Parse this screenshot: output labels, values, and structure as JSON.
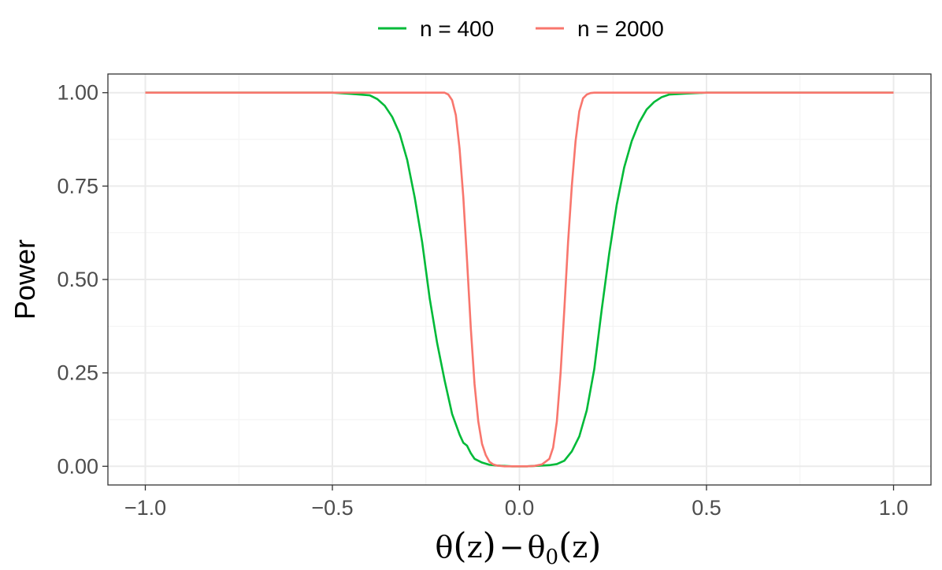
{
  "chart_data": {
    "type": "line",
    "xlabel_parts": {
      "theta": "θ",
      "open": "(",
      "z": "z",
      "close": ")",
      "minus": "−",
      "sub": "0"
    },
    "ylabel": "Power",
    "xlim": [
      -1.1,
      1.1
    ],
    "ylim": [
      -0.05,
      1.05
    ],
    "x_ticks": [
      -1.0,
      -0.5,
      0.0,
      0.5,
      1.0
    ],
    "x_tick_labels": [
      "−1.0",
      "−0.5",
      "0.0",
      "0.5",
      "1.0"
    ],
    "y_ticks": [
      0.0,
      0.25,
      0.5,
      0.75,
      1.0
    ],
    "y_tick_labels": [
      "0.00",
      "0.25",
      "0.50",
      "0.75",
      "1.00"
    ],
    "grid": true,
    "legend_position": "top",
    "series": [
      {
        "name": "n = 400",
        "color": "#00ba38",
        "x": [
          -1.0,
          -0.5,
          -0.45,
          -0.4,
          -0.38,
          -0.36,
          -0.34,
          -0.32,
          -0.3,
          -0.28,
          -0.26,
          -0.24,
          -0.22,
          -0.2,
          -0.18,
          -0.16,
          -0.15,
          -0.14,
          -0.13,
          -0.12,
          -0.1,
          -0.08,
          -0.06,
          -0.04,
          -0.02,
          0.0,
          0.02,
          0.04,
          0.06,
          0.08,
          0.1,
          0.12,
          0.14,
          0.16,
          0.18,
          0.2,
          0.22,
          0.24,
          0.26,
          0.28,
          0.3,
          0.32,
          0.34,
          0.36,
          0.38,
          0.4,
          0.45,
          0.5,
          1.0
        ],
        "values": [
          1.0,
          1.0,
          0.997,
          0.993,
          0.983,
          0.965,
          0.935,
          0.89,
          0.82,
          0.72,
          0.6,
          0.45,
          0.33,
          0.23,
          0.14,
          0.085,
          0.063,
          0.055,
          0.035,
          0.02,
          0.01,
          0.004,
          0.002,
          0.001,
          0.0,
          0.0,
          0.0,
          0.001,
          0.002,
          0.003,
          0.006,
          0.015,
          0.04,
          0.08,
          0.15,
          0.26,
          0.42,
          0.57,
          0.7,
          0.8,
          0.87,
          0.92,
          0.955,
          0.975,
          0.988,
          0.995,
          0.998,
          1.0,
          1.0
        ]
      },
      {
        "name": "n = 2000",
        "color": "#f8766d",
        "x": [
          -1.0,
          -0.2,
          -0.19,
          -0.18,
          -0.17,
          -0.16,
          -0.15,
          -0.14,
          -0.13,
          -0.12,
          -0.11,
          -0.1,
          -0.09,
          -0.08,
          -0.07,
          -0.06,
          -0.05,
          -0.04,
          -0.02,
          0.0,
          0.02,
          0.04,
          0.06,
          0.08,
          0.09,
          0.1,
          0.11,
          0.12,
          0.13,
          0.14,
          0.15,
          0.16,
          0.17,
          0.18,
          0.19,
          0.2,
          1.0
        ],
        "values": [
          1.0,
          1.0,
          0.995,
          0.98,
          0.94,
          0.85,
          0.72,
          0.55,
          0.37,
          0.22,
          0.12,
          0.06,
          0.03,
          0.012,
          0.005,
          0.002,
          0.001,
          0.0,
          0.0,
          0.0,
          0.0,
          0.001,
          0.005,
          0.02,
          0.05,
          0.12,
          0.25,
          0.42,
          0.6,
          0.75,
          0.87,
          0.95,
          0.985,
          0.995,
          0.999,
          1.0,
          1.0
        ]
      }
    ]
  }
}
